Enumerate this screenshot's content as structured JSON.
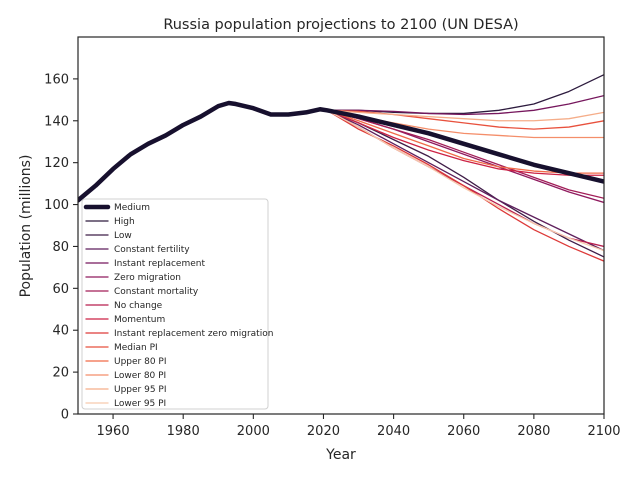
{
  "chart_data": {
    "type": "line",
    "title": "Russia population projections to 2100 (UN DESA)",
    "xlabel": "Year",
    "ylabel": "Population (millions)",
    "xlim": [
      1950,
      2100
    ],
    "ylim": [
      0,
      180
    ],
    "xticks": [
      1960,
      1980,
      2000,
      2020,
      2040,
      2060,
      2080,
      2100
    ],
    "yticks": [
      0,
      20,
      40,
      60,
      80,
      100,
      120,
      140,
      160
    ],
    "grid": false,
    "legend_position": "lower-left",
    "historical": {
      "x": [
        1950,
        1955,
        1960,
        1965,
        1970,
        1975,
        1980,
        1985,
        1990,
        1993,
        1995,
        2000,
        2005,
        2010,
        2015,
        2019,
        2021
      ],
      "y": [
        102,
        109,
        117,
        124,
        129,
        133,
        138,
        142,
        147,
        148.5,
        148,
        146,
        143,
        143,
        144,
        145.5,
        145
      ]
    },
    "series": [
      {
        "name": "Medium",
        "color": "#17102e",
        "width": 4.5,
        "x": [
          1950,
          1955,
          1960,
          1965,
          1970,
          1975,
          1980,
          1985,
          1990,
          1993,
          1995,
          2000,
          2005,
          2010,
          2015,
          2019,
          2021,
          2030,
          2040,
          2050,
          2060,
          2070,
          2080,
          2090,
          2100
        ],
        "y": [
          102,
          109,
          117,
          124,
          129,
          133,
          138,
          142,
          147,
          148.5,
          148,
          146,
          143,
          143,
          144,
          145.5,
          145,
          142,
          138,
          134,
          129,
          124,
          119,
          115,
          111
        ]
      },
      {
        "name": "High",
        "color": "#2d1b3e",
        "width": 1.3,
        "x": [
          2021,
          2030,
          2040,
          2050,
          2060,
          2070,
          2080,
          2090,
          2100
        ],
        "y": [
          145,
          145,
          144,
          143.5,
          143.5,
          145,
          148,
          154,
          162
        ]
      },
      {
        "name": "Low",
        "color": "#3f1d48",
        "width": 1.3,
        "x": [
          2021,
          2030,
          2040,
          2050,
          2060,
          2070,
          2080,
          2090,
          2100
        ],
        "y": [
          145,
          139,
          131,
          123,
          113,
          102,
          92,
          83,
          75
        ]
      },
      {
        "name": "Constant fertility",
        "color": "#5e1f5c",
        "width": 1.3,
        "x": [
          2021,
          2030,
          2040,
          2050,
          2060,
          2070,
          2080,
          2090,
          2100
        ],
        "y": [
          145,
          138,
          129,
          120,
          111,
          102,
          94,
          86,
          78
        ]
      },
      {
        "name": "Instant replacement",
        "color": "#76175d",
        "width": 1.3,
        "x": [
          2021,
          2030,
          2040,
          2050,
          2060,
          2070,
          2080,
          2090,
          2100
        ],
        "y": [
          145,
          145,
          144.5,
          143.5,
          143,
          143.5,
          145,
          148,
          152
        ]
      },
      {
        "name": "Zero migration",
        "color": "#8f1a5e",
        "width": 1.3,
        "x": [
          2021,
          2030,
          2040,
          2050,
          2060,
          2070,
          2080,
          2090,
          2100
        ],
        "y": [
          145,
          141,
          136,
          130,
          124,
          118,
          112,
          106,
          101
        ]
      },
      {
        "name": "Constant mortality",
        "color": "#a21e58",
        "width": 1.3,
        "x": [
          2021,
          2030,
          2040,
          2050,
          2060,
          2070,
          2080,
          2090,
          2100
        ],
        "y": [
          145,
          141,
          136,
          131,
          125,
          119,
          113,
          107,
          103
        ]
      },
      {
        "name": "No change",
        "color": "#b81f4e",
        "width": 1.3,
        "x": [
          2021,
          2030,
          2040,
          2050,
          2060,
          2070,
          2080,
          2090,
          2100
        ],
        "y": [
          145,
          137,
          127,
          118,
          109,
          100,
          91,
          84,
          80
        ]
      },
      {
        "name": "Momentum",
        "color": "#cc2244",
        "width": 1.3,
        "x": [
          2021,
          2030,
          2040,
          2050,
          2060,
          2070,
          2080,
          2090,
          2100
        ],
        "y": [
          145,
          139,
          132,
          126,
          121,
          117,
          115,
          114,
          114
        ]
      },
      {
        "name": "Instant replacement zero migration",
        "color": "#dd3a39",
        "width": 1.3,
        "x": [
          2021,
          2030,
          2040,
          2050,
          2060,
          2070,
          2080,
          2090,
          2100
        ],
        "y": [
          145,
          136,
          128,
          119,
          109,
          98,
          88,
          80,
          73
        ]
      },
      {
        "name": "Median PI",
        "color": "#e8513d",
        "width": 1.3,
        "x": [
          2021,
          2030,
          2040,
          2050,
          2060,
          2070,
          2080,
          2090,
          2100
        ],
        "y": [
          145,
          144.5,
          143,
          141,
          139,
          137,
          136,
          137,
          140
        ]
      },
      {
        "name": "Upper 80 PI",
        "color": "#f06a48",
        "width": 1.3,
        "x": [
          2021,
          2030,
          2040,
          2050,
          2060,
          2070,
          2080,
          2090,
          2100
        ],
        "y": [
          145,
          140,
          134,
          128,
          122,
          118,
          116,
          115,
          115
        ]
      },
      {
        "name": "Lower 80 PI",
        "color": "#f48e6a",
        "width": 1.3,
        "x": [
          2021,
          2030,
          2040,
          2050,
          2060,
          2070,
          2080,
          2090,
          2100
        ],
        "y": [
          145,
          142,
          139,
          136,
          134,
          133,
          132,
          132,
          132
        ]
      },
      {
        "name": "Upper 95 PI",
        "color": "#f5ad89",
        "width": 1.3,
        "x": [
          2021,
          2030,
          2040,
          2050,
          2060,
          2070,
          2080,
          2090,
          2100
        ],
        "y": [
          145,
          144,
          143,
          142,
          141,
          140,
          140,
          141,
          144
        ]
      },
      {
        "name": "Lower 95 PI",
        "color": "#f7cbae",
        "width": 1.3,
        "x": [
          2021,
          2030,
          2040,
          2050,
          2060,
          2070,
          2080,
          2090,
          2100
        ],
        "y": [
          145,
          137,
          127,
          118,
          108,
          99,
          91,
          84,
          78
        ]
      }
    ]
  }
}
